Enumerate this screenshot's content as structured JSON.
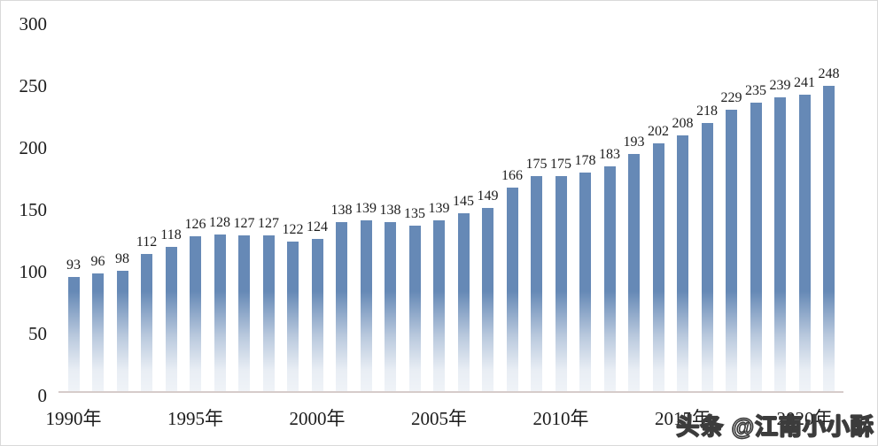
{
  "watermark": {
    "text": "头条 @江南小小酥"
  },
  "chart_data": {
    "type": "bar",
    "title": "",
    "xlabel": "",
    "ylabel": "",
    "categories": [
      "1990",
      "1991",
      "1992",
      "1993",
      "1994",
      "1995",
      "1996",
      "1997",
      "1998",
      "1999",
      "2000",
      "2001",
      "2002",
      "2003",
      "2004",
      "2005",
      "2006",
      "2007",
      "2008",
      "2009",
      "2010",
      "2011",
      "2012",
      "2013",
      "2014",
      "2015",
      "2016",
      "2017",
      "2018",
      "2019",
      "2020",
      "2021"
    ],
    "values": [
      93,
      96,
      98,
      112,
      118,
      126,
      128,
      127,
      127,
      122,
      124,
      138,
      139,
      138,
      135,
      139,
      145,
      149,
      166,
      175,
      175,
      178,
      183,
      193,
      202,
      208,
      218,
      229,
      235,
      239,
      241,
      248
    ],
    "y_ticks": [
      0,
      50,
      100,
      150,
      200,
      250,
      300
    ],
    "ylim": [
      0,
      300
    ],
    "x_tick_years": [
      1990,
      1995,
      2000,
      2005,
      2010,
      2015,
      2020
    ],
    "x_tick_labels": [
      "1990年",
      "1995年",
      "2000年",
      "2005年",
      "2010年",
      "2015年",
      "2020年"
    ],
    "grid": false,
    "legend": "none",
    "data_labels": true,
    "bar_color": "#6689b6",
    "bar_fade_to": "#ffffff",
    "axis_line_color": "#d6ccca",
    "text_color": "#1c1c1c"
  }
}
